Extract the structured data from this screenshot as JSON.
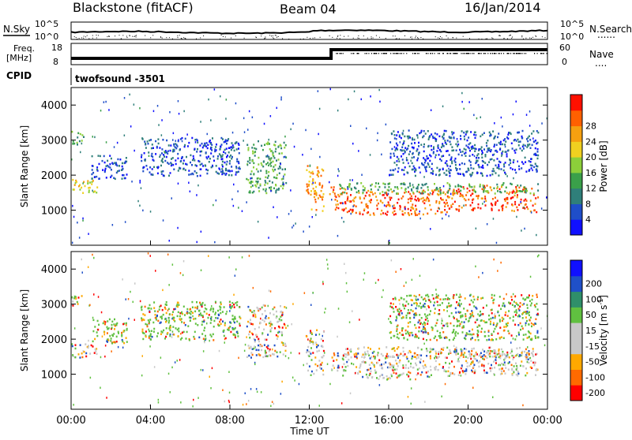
{
  "header": {
    "station": "Blackstone (fitACF)",
    "beam": "Beam 04",
    "date": "16/Jan/2014"
  },
  "top_panels": {
    "nsky_label": "N.Sky",
    "nsearch_label": "N.Search",
    "nsearch_legend": "......",
    "noise_ticks": [
      "10^5",
      "10^0"
    ],
    "freq_label": "Freq.",
    "freq_unit": "[MHz]",
    "freq_ticks": [
      "18",
      "8"
    ],
    "nave_label": "Nave",
    "nave_legend": "....",
    "nave_ticks": [
      "60",
      "0"
    ],
    "cpid_label": "CPID",
    "cpid_value": "twofsound -3501"
  },
  "colors": {
    "power_scale": [
      "#1010ff",
      "#1f4ec9",
      "#2f7f7a",
      "#3aa04a",
      "#8ccf3a",
      "#f0d020",
      "#f5a010",
      "#ff6000",
      "#ff1000"
    ],
    "velocity_scale": [
      "#ff0000",
      "#ff6a00",
      "#ffa800",
      "#c8c8c8",
      "#c8c8c8",
      "#60c040",
      "#2f8f6a",
      "#1f50c8",
      "#1010ff"
    ]
  },
  "chart_data": [
    {
      "type": "heatmap",
      "name": "power",
      "ylabel": "Slant Range [km]",
      "yticks": [
        1000,
        2000,
        3000,
        4000
      ],
      "ylim": [
        0,
        4500
      ],
      "xlim": [
        0,
        24
      ],
      "colorbar_label": "Power [dB]",
      "colorbar_ticks": [
        "4",
        "8",
        "12",
        "16",
        "20",
        "24",
        "28"
      ],
      "regions": [
        {
          "t0": 0.0,
          "t1": 1.3,
          "r0": 1500,
          "r1": 1900,
          "level": 5
        },
        {
          "t0": 0.0,
          "t1": 0.6,
          "r0": 2900,
          "r1": 3300,
          "level": 3
        },
        {
          "t0": 1.0,
          "t1": 2.8,
          "r0": 1900,
          "r1": 2600,
          "level": 1
        },
        {
          "t0": 3.5,
          "t1": 8.5,
          "r0": 2000,
          "r1": 3100,
          "level": 1
        },
        {
          "t0": 8.8,
          "t1": 10.8,
          "r0": 1500,
          "r1": 3000,
          "level": 3
        },
        {
          "t0": 11.8,
          "t1": 12.7,
          "r0": 1000,
          "r1": 2300,
          "level": 6
        },
        {
          "t0": 13.0,
          "t1": 23.5,
          "r0": 900,
          "r1": 1600,
          "level": 7
        },
        {
          "t0": 13.5,
          "t1": 23.5,
          "r0": 1500,
          "r1": 1800,
          "level": 3
        },
        {
          "t0": 16.0,
          "t1": 23.5,
          "r0": 2000,
          "r1": 3300,
          "level": 1
        }
      ]
    },
    {
      "type": "heatmap",
      "name": "velocity",
      "ylabel": "Slant Range [km]",
      "xlabel": "Time UT",
      "xticks": [
        "00:00",
        "04:00",
        "08:00",
        "12:00",
        "16:00",
        "20:00",
        "00:00"
      ],
      "yticks": [
        1000,
        2000,
        3000,
        4000
      ],
      "ylim": [
        0,
        4500
      ],
      "xlim": [
        0,
        24
      ],
      "colorbar_label": "Velocity [m s",
      "colorbar_sup": "-1",
      "colorbar_ticks": [
        "-200",
        "-100",
        "-50",
        "-15",
        "15",
        "50",
        "100",
        "200"
      ]
    }
  ]
}
